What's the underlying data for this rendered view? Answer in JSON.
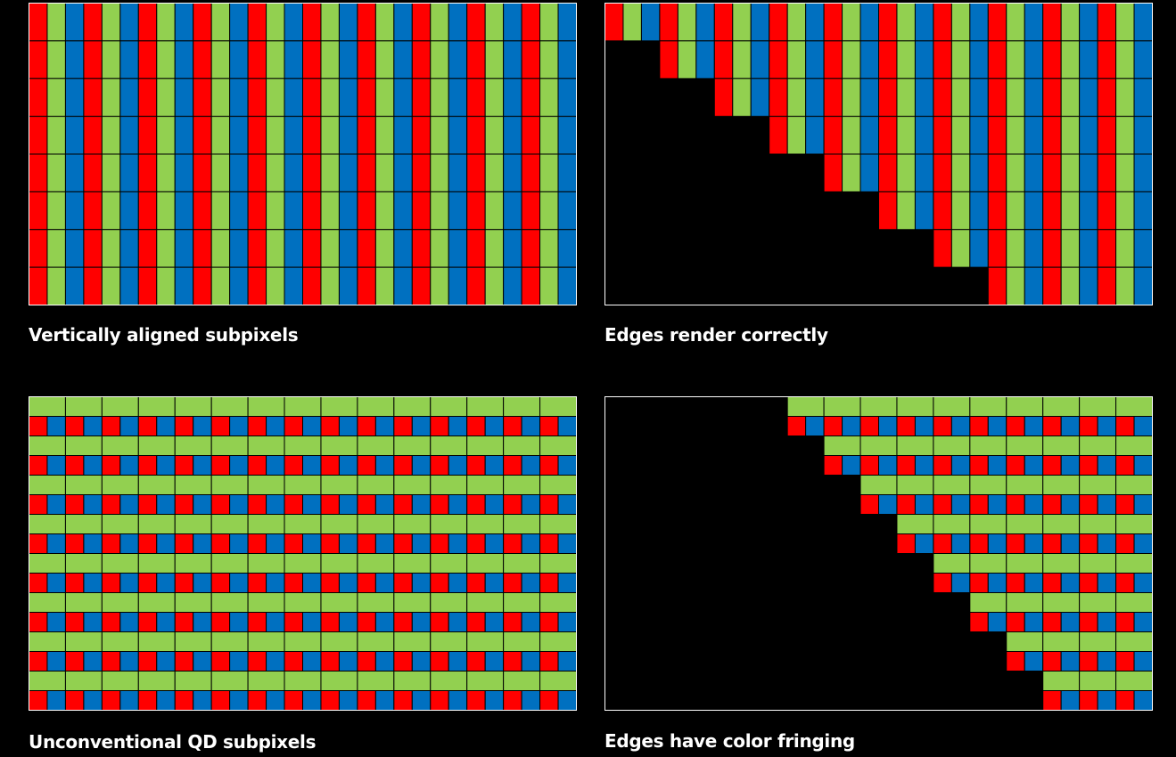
{
  "colors": {
    "red": "#ff0000",
    "green": "#92d050",
    "blue": "#0070c0",
    "grid_line": "#000000",
    "frame": "#ffffff",
    "background": "#000000"
  },
  "panels": [
    {
      "id": "vertical-stripes",
      "caption": "Vertically aligned subpixels",
      "layout": "rgb-vertical-stripes",
      "columns": 30,
      "rows": 8
    },
    {
      "id": "vertical-stripes-edge",
      "caption": "Edges render correctly",
      "layout": "rgb-vertical-stripes-staircase",
      "columns": 30,
      "rows": 8,
      "steps": 8
    },
    {
      "id": "qd-subpixels",
      "caption": "Unconventional QD subpixels",
      "layout": "qd-green-over-red-blue",
      "pixel_columns": 15,
      "pixel_rows": 8
    },
    {
      "id": "qd-subpixels-edge",
      "caption": "Edges have color fringing",
      "layout": "qd-green-over-red-blue-staircase",
      "pixel_columns": 15,
      "pixel_rows": 8,
      "steps": 8
    }
  ]
}
